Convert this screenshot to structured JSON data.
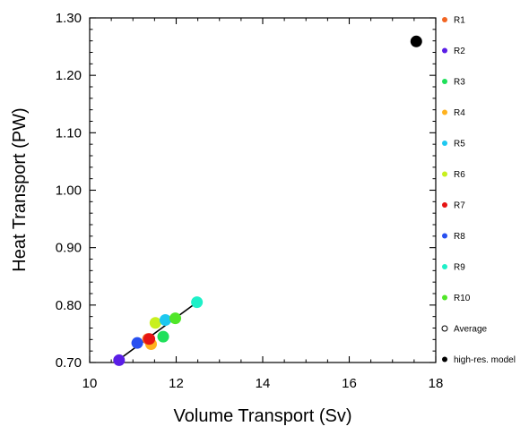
{
  "chart_data": {
    "type": "scatter",
    "xlabel": "Volume Transport (Sv)",
    "ylabel": "Heat Transport (PW)",
    "xlim": [
      10,
      18
    ],
    "ylim": [
      0.7,
      1.3
    ],
    "x_ticks": [
      "10",
      "12",
      "14",
      "16",
      "18"
    ],
    "y_ticks": [
      "0.70",
      "0.80",
      "0.90",
      "1.00",
      "1.10",
      "1.20",
      "1.30"
    ],
    "grid": false,
    "legend_position": "right",
    "series": [
      {
        "name": "R1",
        "color": "#f26522",
        "x": 11.35,
        "y": 0.741
      },
      {
        "name": "R2",
        "color": "#5a1ee6",
        "x": 10.68,
        "y": 0.704
      },
      {
        "name": "R3",
        "color": "#1fe05a",
        "x": 11.7,
        "y": 0.745
      },
      {
        "name": "R4",
        "color": "#ffb21e",
        "x": 11.42,
        "y": 0.732
      },
      {
        "name": "R5",
        "color": "#1ec8f0",
        "x": 11.75,
        "y": 0.774
      },
      {
        "name": "R6",
        "color": "#c8f01e",
        "x": 11.52,
        "y": 0.769
      },
      {
        "name": "R7",
        "color": "#e61414",
        "x": 11.38,
        "y": 0.741
      },
      {
        "name": "R8",
        "color": "#2850f0",
        "x": 11.1,
        "y": 0.734
      },
      {
        "name": "R9",
        "color": "#1ef0c8",
        "x": 12.48,
        "y": 0.805
      },
      {
        "name": "R10",
        "color": "#50e628",
        "x": 11.98,
        "y": 0.777
      },
      {
        "name": "Average",
        "color": "#000000",
        "marker": "hollow",
        "x": null,
        "y": null
      },
      {
        "name": "high-res. model",
        "color": "#000000",
        "x": 17.55,
        "y": 1.259
      }
    ],
    "fit_line": {
      "x": [
        10.62,
        12.5
      ],
      "y": [
        0.702,
        0.806
      ],
      "color": "#000000"
    }
  }
}
